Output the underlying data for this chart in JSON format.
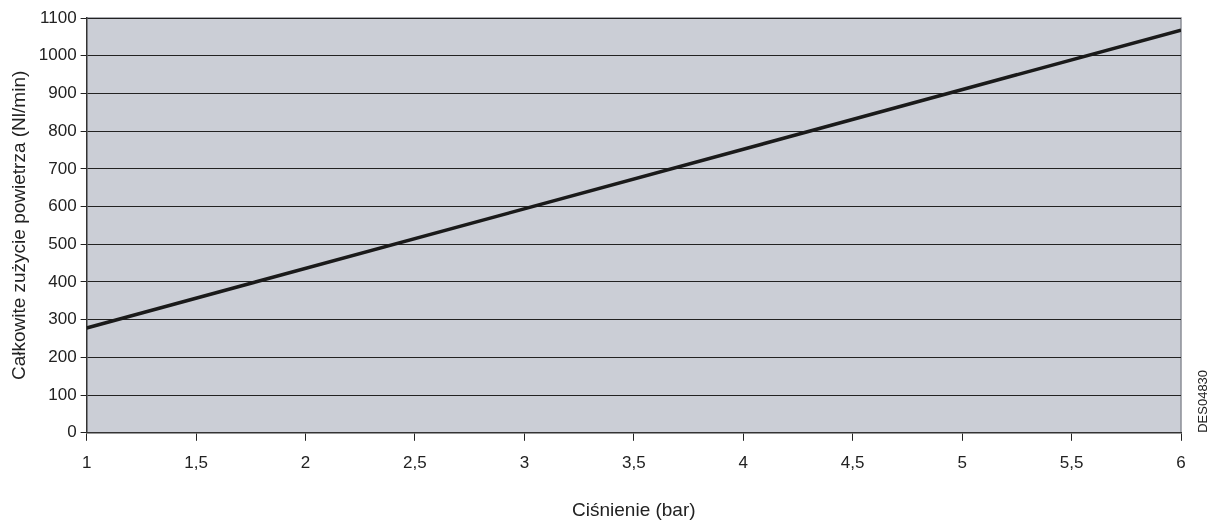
{
  "chart_data": {
    "type": "line",
    "xlabel": "Ciśnienie (bar)",
    "ylabel": "Całkowite zużycie powietrza (Nl/min)",
    "x": [
      1,
      6
    ],
    "series": [
      {
        "color": "#1a1a1a",
        "values": [
          278,
          1068
        ]
      }
    ],
    "xlim": [
      1,
      6
    ],
    "ylim": [
      0,
      1100
    ],
    "xticks": [
      1,
      {
        "value": 1.5,
        "label": "1,5"
      },
      2,
      {
        "value": 2.5,
        "label": "2,5"
      },
      3,
      {
        "value": 3.5,
        "label": "3,5"
      },
      4,
      {
        "value": 4.5,
        "label": "4,5"
      },
      5,
      {
        "value": 5.5,
        "label": "5,5"
      },
      6
    ],
    "yticks": [
      0,
      100,
      200,
      300,
      400,
      500,
      600,
      700,
      800,
      900,
      1000,
      1100
    ],
    "grid": "y",
    "legend": false,
    "marker": "none",
    "line_style": "solid",
    "annotations": [
      "DES04830"
    ]
  }
}
